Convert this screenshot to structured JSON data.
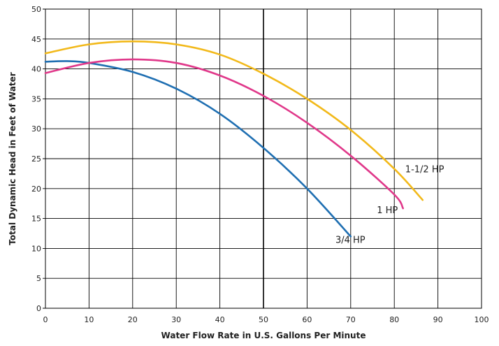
{
  "chart_data": {
    "type": "line",
    "title": "",
    "xlabel": "Water Flow Rate in U.S. Gallons Per Minute",
    "ylabel": "Total Dynamic Head in Feet of Water",
    "xlim": [
      0,
      100
    ],
    "ylim": [
      0,
      50
    ],
    "x_ticks": [
      0,
      10,
      20,
      30,
      40,
      50,
      60,
      70,
      80,
      90,
      100
    ],
    "y_ticks": [
      0,
      5,
      10,
      15,
      20,
      25,
      30,
      35,
      40,
      45,
      50
    ],
    "x_tick_labels": [
      "0",
      "10",
      "20",
      "30",
      "40",
      "50",
      "60",
      "70",
      "80",
      "90",
      "100"
    ],
    "y_tick_labels": [
      "0",
      "5",
      "10",
      "15",
      "20",
      "25",
      "30",
      "35",
      "40",
      "45",
      "50"
    ],
    "grid": true,
    "legend": "none",
    "series": [
      {
        "name": "3/4 HP",
        "color": "#1f6fb2",
        "x": [
          0,
          5,
          10,
          20,
          30,
          40,
          50,
          60,
          70
        ],
        "y": [
          41.2,
          41.3,
          41.0,
          39.5,
          36.7,
          32.5,
          26.8,
          20.0,
          12.0
        ]
      },
      {
        "name": "1 HP",
        "color": "#e0388a",
        "x": [
          0,
          10,
          20,
          30,
          40,
          50,
          60,
          70,
          80,
          82
        ],
        "y": [
          39.3,
          41.0,
          41.6,
          41.0,
          38.9,
          35.5,
          31.0,
          25.5,
          19.0,
          16.7
        ]
      },
      {
        "name": "1-1/2 HP",
        "color": "#f2b91a",
        "x": [
          0,
          10,
          20,
          30,
          40,
          50,
          60,
          70,
          80,
          86.5
        ],
        "y": [
          42.6,
          44.1,
          44.6,
          44.1,
          42.4,
          39.2,
          35.0,
          29.8,
          23.3,
          18.1
        ]
      }
    ],
    "annotations": [
      {
        "text": "3/4 HP",
        "x": 66.5,
        "y": 11.5
      },
      {
        "text": "1 HP",
        "x": 76.0,
        "y": 16.5
      },
      {
        "text": "1-1/2 HP",
        "x": 82.5,
        "y": 23.3
      }
    ]
  }
}
